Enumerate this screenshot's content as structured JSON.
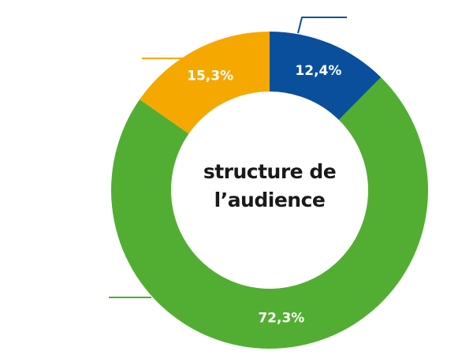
{
  "chart_data": {
    "type": "donut",
    "title": "structure de l’audience",
    "categories": [
      null,
      null,
      null
    ],
    "values": [
      12.4,
      72.3,
      15.3
    ],
    "value_labels": [
      "12,4%",
      "72,3%",
      "15,3%"
    ],
    "colors": [
      "#0a4f9c",
      "#52ae32",
      "#f5a800"
    ]
  }
}
